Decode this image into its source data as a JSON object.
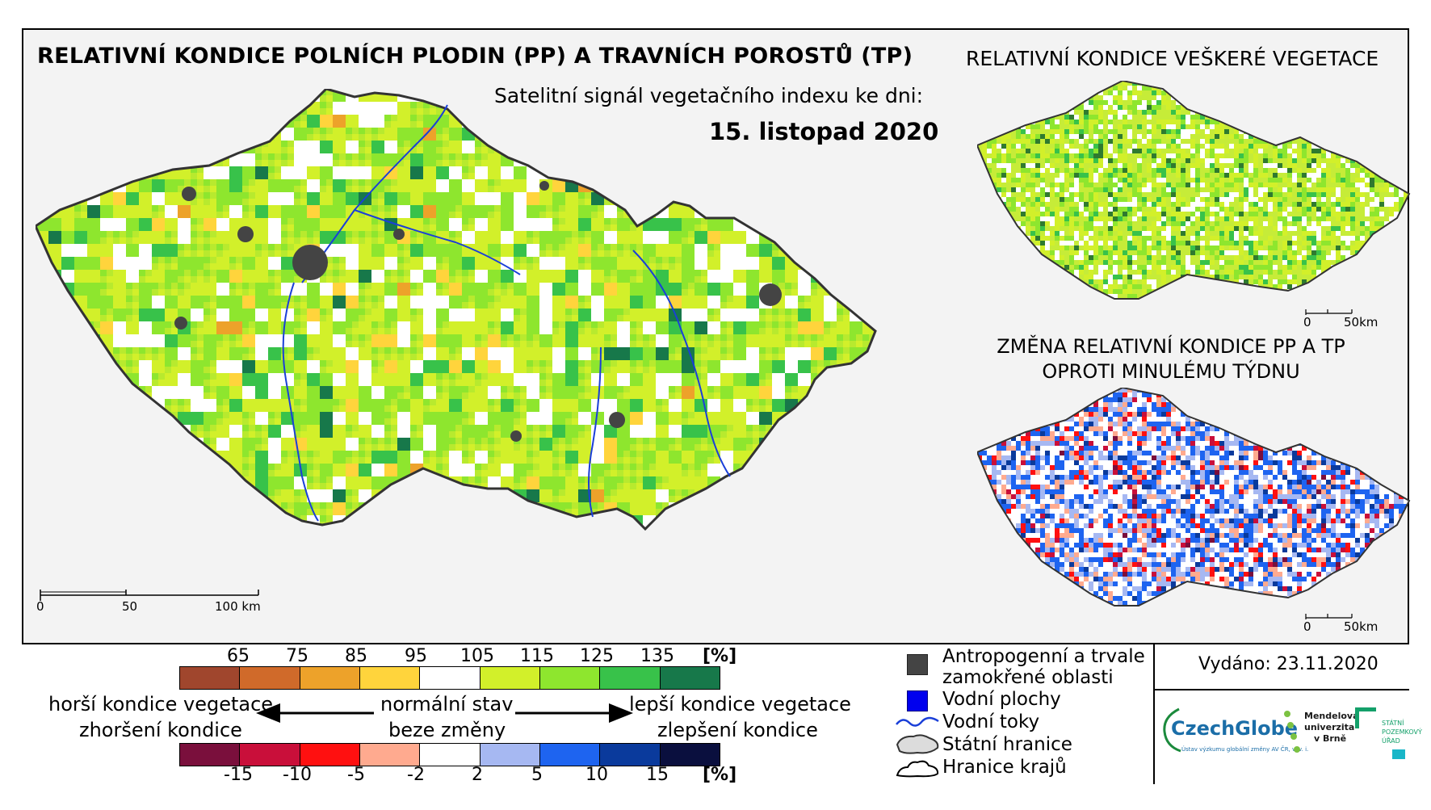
{
  "title_main": "RELATIVNÍ KONDICE POLNÍCH PLODIN (PP) A TRAVNÍCH POROSTŮ (TP)",
  "subtitle": "Satelitní signál vegetačního indexu ke dni:",
  "date": "15. listopad 2020",
  "title_right": "RELATIVNÍ KONDICE VEŠKERÉ VEGETACE",
  "title_change_line1": "ZMĚNA RELATIVNÍ KONDICE PP A TP",
  "title_change_line2": "OPROTI MINULÉMU TÝDNU",
  "scalebar_main": {
    "labels": [
      "0",
      "50",
      "100 km"
    ]
  },
  "scalebar_small": {
    "labels": [
      "0",
      "50km"
    ]
  },
  "legend_condition": {
    "ticks": [
      "65",
      "75",
      "85",
      "95",
      "105",
      "115",
      "125",
      "135"
    ],
    "unit": "[%]",
    "colors": [
      "#a0462d",
      "#d06a2a",
      "#eda22a",
      "#ffd43c",
      "#ffffff",
      "#d2f02a",
      "#8ee62e",
      "#38c24a",
      "#17784a"
    ]
  },
  "legend_change": {
    "ticks": [
      "-15",
      "-10",
      "-5",
      "-2",
      "2",
      "5",
      "10",
      "15"
    ],
    "unit": "[%]",
    "colors": [
      "#7a0f3c",
      "#c90f3a",
      "#ff1010",
      "#ffaa8f",
      "#ffffff",
      "#a6b8f2",
      "#1e64f0",
      "#0a3a9c",
      "#0a0f3e"
    ]
  },
  "labels": {
    "worse_condition": "horší kondice vegetace",
    "normal_state": "normální stav",
    "better_condition": "lepší kondice vegetace",
    "worsening": "zhoršení kondice",
    "no_change": "beze změny",
    "improvement": "zlepšení kondice"
  },
  "map_legend": {
    "anthropogenic": "Antropogenní a trvale",
    "anthropogenic_2": "zamokřené oblasti",
    "water_areas": "Vodní plochy",
    "water_streams": "Vodní toky",
    "state_border": "Státní hranice",
    "region_border": "Hranice krajů"
  },
  "issued": "Vydáno: 23.11.2020",
  "logos": {
    "czechglobe": "CzechGlobe",
    "czechglobe_sub": "Ústav výzkumu globální změny AV ČR, v. v. i.",
    "mendel_1": "Mendelova",
    "mendel_2": "univerzita",
    "mendel_3": "v Brně",
    "spu_1": "STÁTNÍ",
    "spu_2": "POZEMKOVÝ",
    "spu_3": "ÚŘAD"
  }
}
